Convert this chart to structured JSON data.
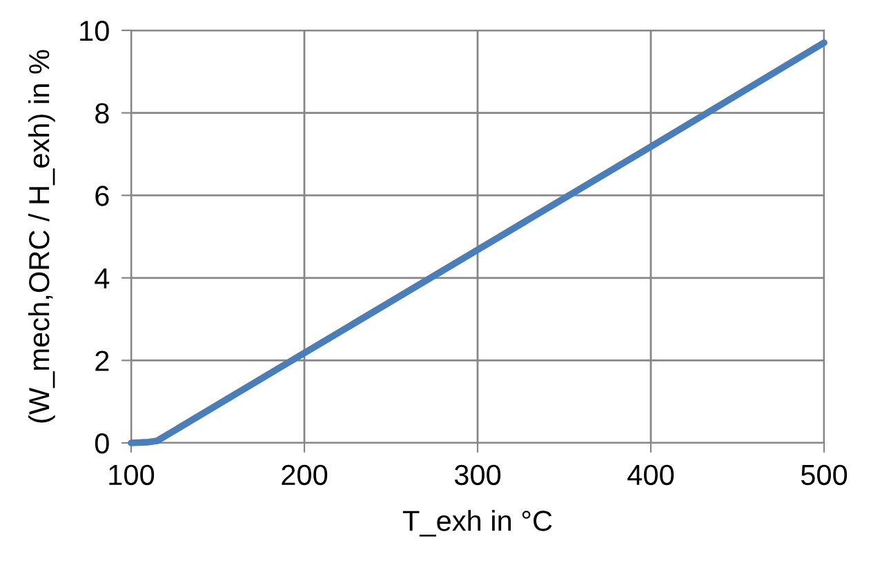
{
  "chart_data": {
    "type": "line",
    "xlabel": "T_exh in °C",
    "ylabel": "(W_mech,ORC / H_exh) in %",
    "series": [
      {
        "color": "#4a7ebb",
        "x": [
          100,
          110,
          115,
          200,
          300,
          400,
          500
        ],
        "values": [
          0,
          0.02,
          0.05,
          2.18,
          4.68,
          7.18,
          9.7
        ]
      }
    ],
    "xlim": [
      100,
      500
    ],
    "xticks": [
      100,
      200,
      300,
      400,
      500
    ],
    "ylim": [
      0,
      10
    ],
    "yticks": [
      0,
      2,
      4,
      6,
      8,
      10
    ],
    "grid": true,
    "marker": "none",
    "line_style": "solid"
  }
}
